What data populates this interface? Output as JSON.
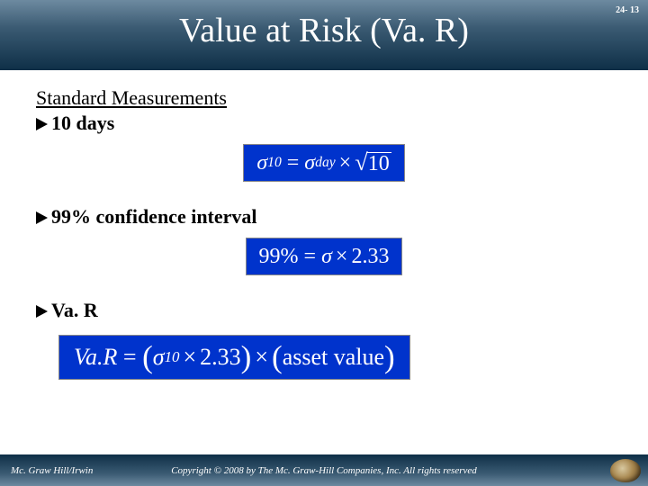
{
  "page_number": "24- 13",
  "title": "Value at Risk (Va. R)",
  "heading": "Standard Measurements",
  "bullets": {
    "b1": "10 days",
    "b2": "99% confidence interval",
    "b3": "Va. R"
  },
  "formulas": {
    "f1": {
      "sigma": "σ",
      "sub1": "10",
      "eq": "=",
      "sub2": "day",
      "times": "×",
      "sqrt_arg": "10"
    },
    "f2": {
      "lhs": "99%",
      "eq": "=",
      "sigma": "σ",
      "times": "×",
      "val": "2.33"
    },
    "f3": {
      "lhs": "Va.R",
      "eq": "=",
      "sigma": "σ",
      "sub": "10",
      "times": "×",
      "val": "2.33",
      "asset": "asset value"
    }
  },
  "footer": {
    "left": "Mc. Graw Hill/Irwin",
    "center": "Copyright © 2008 by The Mc. Graw-Hill Companies, Inc. All rights reserved"
  },
  "style": {
    "slide_width": 720,
    "slide_height": 540,
    "header_gradient": [
      "#6d8aa0",
      "#3a5a72",
      "#0e2f47"
    ],
    "footer_gradient": [
      "#0e2f47",
      "#3a5a72",
      "#6d8aa0"
    ],
    "body_bg": "#00132a",
    "content_bg": "#ffffff",
    "formula_bg": "#0033cc",
    "formula_fg": "#ffffff",
    "title_color": "#ffffff",
    "text_color": "#000000",
    "title_fontsize": 38,
    "body_fontsize": 22,
    "formula_fontsize_small": 24,
    "formula_fontsize_large": 26,
    "footer_fontsize": 11,
    "page_number_fontsize": 10,
    "font_family": "Times New Roman"
  }
}
